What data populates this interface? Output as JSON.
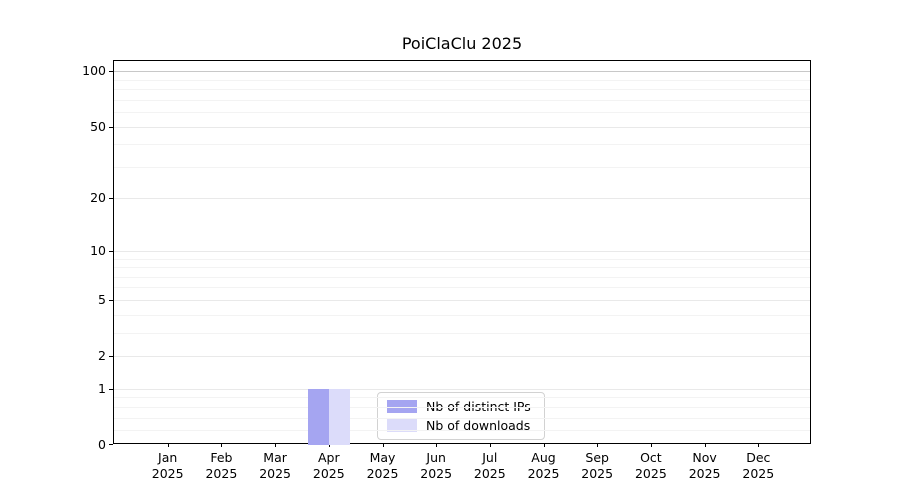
{
  "title": "PoiClaClu 2025",
  "chart_data": {
    "type": "bar",
    "title": "PoiClaClu 2025",
    "x_months": [
      "Jan",
      "Feb",
      "Mar",
      "Apr",
      "May",
      "Jun",
      "Jul",
      "Aug",
      "Sep",
      "Oct",
      "Nov",
      "Dec"
    ],
    "x_year": "2025",
    "categories": [
      "Jan 2025",
      "Feb 2025",
      "Mar 2025",
      "Apr 2025",
      "May 2025",
      "Jun 2025",
      "Jul 2025",
      "Aug 2025",
      "Sep 2025",
      "Oct 2025",
      "Nov 2025",
      "Dec 2025"
    ],
    "series": [
      {
        "name": "Nb of distinct IPs",
        "color": "#a5a5f1",
        "values": [
          0,
          0,
          0,
          1,
          0,
          0,
          0,
          0,
          0,
          0,
          0,
          0
        ]
      },
      {
        "name": "Nb of downloads",
        "color": "#dcdcfa",
        "values": [
          0,
          0,
          0,
          1,
          0,
          0,
          0,
          0,
          0,
          0,
          0,
          0
        ]
      }
    ],
    "y_ticks": [
      0,
      1,
      2,
      5,
      10,
      20,
      50,
      100
    ],
    "y_minor_ticks": [
      0.2,
      0.4,
      0.6,
      0.8,
      3,
      4,
      6,
      7,
      8,
      9,
      30,
      40,
      60,
      70,
      80,
      90
    ],
    "y_scale": "log10(1+v)",
    "ylim": [
      0,
      114
    ],
    "grid": "horizontal, major and minor, light gray",
    "legend_position": "bottom-center of plot",
    "colors": {
      "axis": "#000000",
      "grid_major": "#e9e9e9",
      "grid_minor": "#f3f3f3",
      "grid_top": "#c8c8c8",
      "legend_border": "#d2d2d2",
      "text": "#000000"
    }
  }
}
